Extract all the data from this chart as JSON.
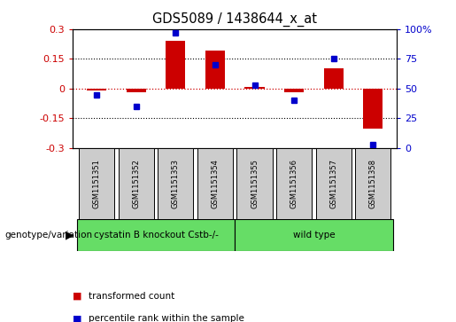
{
  "title": "GDS5089 / 1438644_x_at",
  "samples": [
    "GSM1151351",
    "GSM1151352",
    "GSM1151353",
    "GSM1151354",
    "GSM1151355",
    "GSM1151356",
    "GSM1151357",
    "GSM1151358"
  ],
  "red_values": [
    -0.01,
    -0.02,
    0.24,
    0.19,
    0.01,
    -0.02,
    0.1,
    -0.2
  ],
  "blue_values": [
    45,
    35,
    97,
    70,
    53,
    40,
    75,
    3
  ],
  "ylim_left": [
    -0.3,
    0.3
  ],
  "ylim_right": [
    0,
    100
  ],
  "yticks_left": [
    -0.3,
    -0.15,
    0,
    0.15,
    0.3
  ],
  "yticks_left_labels": [
    "-0.3",
    "-0.15",
    "0",
    "0.15",
    "0.3"
  ],
  "yticks_right": [
    0,
    25,
    50,
    75,
    100
  ],
  "yticks_right_labels": [
    "0",
    "25",
    "50",
    "75",
    "100%"
  ],
  "red_color": "#cc0000",
  "blue_color": "#0000cc",
  "red_hline_color": "#cc0000",
  "group1_label": "cystatin B knockout Cstb-/-",
  "group2_label": "wild type",
  "group_color": "#66dd66",
  "sample_box_color": "#cccccc",
  "xlabel_label": "genotype/variation",
  "legend_red": "transformed count",
  "legend_blue": "percentile rank within the sample",
  "bar_width": 0.5,
  "background_color": "#ffffff",
  "tick_color_left": "#cc0000",
  "tick_color_right": "#0000cc"
}
